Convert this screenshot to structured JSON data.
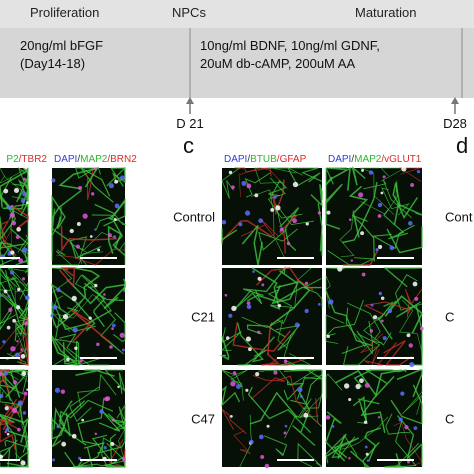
{
  "timeline": {
    "stages": [
      "Proliferation",
      "NPCs",
      "Maturation"
    ],
    "steps": [
      [
        "20ng/ml bFGF",
        "(Day14-18)"
      ],
      [
        "10ng/ml BDNF, 10ng/ml GDNF,",
        "20uM db-cAMP, 200uM AA"
      ]
    ],
    "days": [
      "D 21",
      "D28"
    ]
  },
  "panels": [
    {
      "headers": [
        [
          {
            "text": "P2",
            "color": "#2bb52b"
          },
          {
            "text": "/TBR2",
            "color": "#d92b2b"
          }
        ],
        [
          {
            "text": "DAPI",
            "color": "#2b3fd9"
          },
          {
            "text": "/",
            "color": "#333333"
          },
          {
            "text": "MAP2",
            "color": "#2bb52b"
          },
          {
            "text": "/BRN2",
            "color": "#d92b2b"
          }
        ]
      ]
    },
    {
      "label": "c",
      "rows": [
        "Control",
        "C21",
        "C47"
      ],
      "headers": [
        [
          {
            "text": "DAPI",
            "color": "#2b3fd9"
          },
          {
            "text": "/",
            "color": "#333333"
          },
          {
            "text": "BTUB",
            "color": "#2bb52b"
          },
          {
            "text": "/GFAP",
            "color": "#d92b2b"
          }
        ],
        [
          {
            "text": "DAPI",
            "color": "#2b3fd9"
          },
          {
            "text": "/",
            "color": "#333333"
          },
          {
            "text": "MAP2",
            "color": "#2bb52b"
          },
          {
            "text": "/vGLUT1",
            "color": "#d92b2b"
          }
        ]
      ]
    },
    {
      "label": "d",
      "rows": [
        "Cont",
        "C",
        "C"
      ]
    }
  ]
}
